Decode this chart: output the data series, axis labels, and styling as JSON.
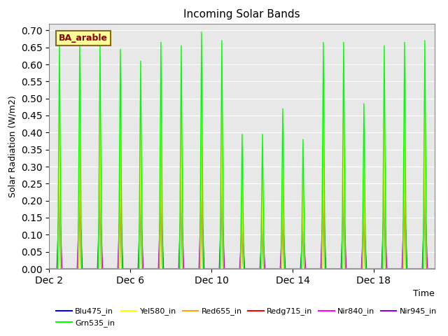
{
  "title": "Incoming Solar Bands",
  "xlabel": "Time",
  "ylabel": "Solar Radiation (W/m2)",
  "ylim": [
    0.0,
    0.72
  ],
  "yticks": [
    0.0,
    0.05,
    0.1,
    0.15,
    0.2,
    0.25,
    0.3,
    0.35,
    0.4,
    0.45,
    0.5,
    0.55,
    0.6,
    0.65,
    0.7
  ],
  "xtick_labels": [
    "Dec 2",
    "Dec 6",
    "Dec 10",
    "Dec 14",
    "Dec 18"
  ],
  "xtick_positions": [
    0,
    4,
    8,
    12,
    16
  ],
  "legend_label": "BA_arable",
  "legend_text_color": "#8B0000",
  "legend_box_color": "#FFFF99",
  "series": [
    {
      "name": "Blu475_in",
      "color": "#0000FF"
    },
    {
      "name": "Grn535_in",
      "color": "#00FF00"
    },
    {
      "name": "Yel580_in",
      "color": "#FFFF00"
    },
    {
      "name": "Red655_in",
      "color": "#FFA500"
    },
    {
      "name": "Redg715_in",
      "color": "#FF0000"
    },
    {
      "name": "Nir840_in",
      "color": "#FF00FF"
    },
    {
      "name": "Nir945_in",
      "color": "#9400D3"
    }
  ],
  "background_color": "#E8E8E8",
  "grid_color": "#FFFFFF",
  "figsize": [
    6.4,
    4.8
  ],
  "dpi": 100,
  "grn_peaks": [
    0.66,
    0.665,
    0.665,
    0.645,
    0.61,
    0.665,
    0.655,
    0.695,
    0.67,
    0.395,
    0.395,
    0.47,
    0.38,
    0.665,
    0.665,
    0.485,
    0.655,
    0.665,
    0.67
  ],
  "blu_peaks": [
    0.41,
    0.415,
    0.415,
    0.4,
    0.38,
    0.41,
    0.4,
    0.425,
    0.415,
    0.24,
    0.24,
    0.29,
    0.24,
    0.415,
    0.415,
    0.3,
    0.41,
    0.415,
    0.415
  ],
  "yel_peaks": [
    0.46,
    0.465,
    0.465,
    0.455,
    0.43,
    0.465,
    0.46,
    0.485,
    0.47,
    0.275,
    0.275,
    0.33,
    0.27,
    0.465,
    0.465,
    0.34,
    0.46,
    0.465,
    0.47
  ],
  "red_peaks": [
    0.43,
    0.435,
    0.435,
    0.425,
    0.4,
    0.435,
    0.43,
    0.455,
    0.44,
    0.255,
    0.255,
    0.31,
    0.25,
    0.435,
    0.435,
    0.32,
    0.43,
    0.435,
    0.44
  ],
  "redg_peaks": [
    0.41,
    0.415,
    0.415,
    0.405,
    0.385,
    0.415,
    0.41,
    0.435,
    0.42,
    0.245,
    0.245,
    0.295,
    0.24,
    0.415,
    0.415,
    0.305,
    0.41,
    0.415,
    0.42
  ],
  "nir840_peaks": [
    0.23,
    0.225,
    0.225,
    0.225,
    0.215,
    0.225,
    0.225,
    0.245,
    0.235,
    0.135,
    0.135,
    0.165,
    0.135,
    0.225,
    0.225,
    0.165,
    0.225,
    0.225,
    0.235
  ],
  "nir945_peaks": [
    0.23,
    0.225,
    0.225,
    0.225,
    0.215,
    0.225,
    0.225,
    0.245,
    0.235,
    0.135,
    0.135,
    0.165,
    0.135,
    0.225,
    0.225,
    0.165,
    0.225,
    0.225,
    0.235
  ]
}
